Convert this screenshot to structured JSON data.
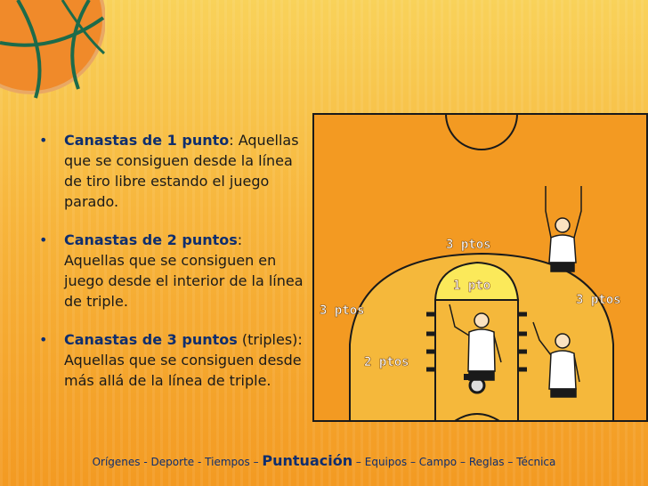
{
  "bullets": [
    {
      "title": "Canastas de 1 punto",
      "title_suffix": ":",
      "body": "Aquellas que se consiguen desde la línea de tiro libre estando el juego parado."
    },
    {
      "title": "Canastas de 2 puntos",
      "title_suffix": ":",
      "body": "Aquellas que se consiguen en juego desde el interior de la línea de triple."
    },
    {
      "title": "Canastas de 3 puntos",
      "title_suffix": "",
      "body": "(triples): Aquellas que se consiguen desde más allá de la línea de triple."
    }
  ],
  "court": {
    "label_3_top": "3 ptos",
    "label_3_left": "3 ptos",
    "label_3_right": "3 ptos",
    "label_1": "1 pto",
    "label_2": "2 ptos",
    "colors": {
      "outer": "#f39a22",
      "inner": "#f5b83b",
      "key_top": "#fbe95a",
      "line": "#1a1a1a"
    }
  },
  "footer": {
    "items": [
      "Orígenes",
      "Deporte",
      "Tiempos",
      "Puntuación",
      "Equipos",
      "Campo",
      "Reglas",
      "Técnica"
    ],
    "separators": [
      "-",
      "-",
      "–",
      "–",
      "–",
      "–",
      "–"
    ],
    "current": "Puntuación"
  },
  "bullet_glyph": "•"
}
